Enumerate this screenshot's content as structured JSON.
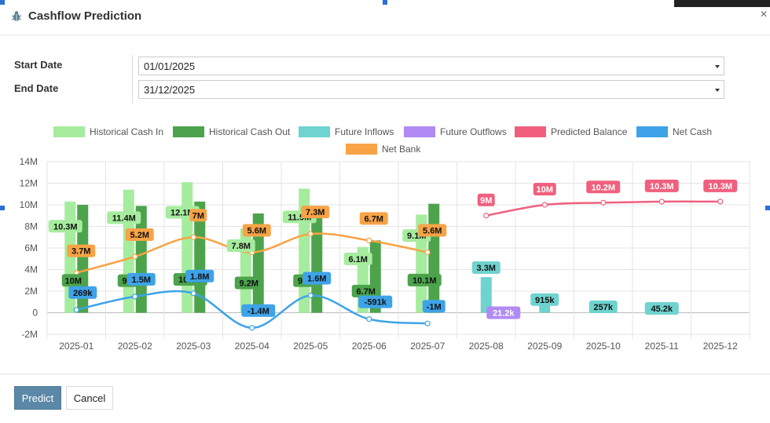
{
  "dialog": {
    "title": "Cashflow Prediction",
    "close_label": "×"
  },
  "form": {
    "start_label": "Start Date",
    "start_value": "01/01/2025",
    "end_label": "End Date",
    "end_value": "31/12/2025"
  },
  "buttons": {
    "predict": "Predict",
    "cancel": "Cancel"
  },
  "chart_data": {
    "type": "bar",
    "categories": [
      "2025-01",
      "2025-02",
      "2025-03",
      "2025-04",
      "2025-05",
      "2025-06",
      "2025-07",
      "2025-08",
      "2025-09",
      "2025-10",
      "2025-11",
      "2025-12"
    ],
    "y_ticks": [
      "14M",
      "12M",
      "10M",
      "8M",
      "6M",
      "4M",
      "2M",
      "0",
      "-2M"
    ],
    "ylim": [
      -2,
      14
    ],
    "grid": true,
    "legend_position": "top",
    "series": [
      {
        "name": "Historical Cash In",
        "kind": "bar",
        "color": "#a6ec9e",
        "values": [
          10.3,
          11.4,
          12.1,
          7.8,
          11.5,
          6.1,
          9.1,
          null,
          null,
          null,
          null,
          null
        ],
        "labels": [
          "10.3M",
          "11.4M",
          "12.1M",
          "7.8M",
          "11.5M",
          "6.1M",
          "9.1M",
          null,
          null,
          null,
          null,
          null
        ]
      },
      {
        "name": "Historical Cash Out",
        "kind": "bar",
        "color": "#4ca34c",
        "values": [
          10,
          9.9,
          10.3,
          9.2,
          9.9,
          6.7,
          10.1,
          null,
          null,
          null,
          null,
          null
        ],
        "labels": [
          "10M",
          "9.9M",
          "10.3M",
          "9.2M",
          "9.9M",
          "6.7M",
          "10.1M",
          null,
          null,
          null,
          null,
          null
        ]
      },
      {
        "name": "Future Inflows",
        "kind": "bar",
        "color": "#6fd3cf",
        "values": [
          null,
          null,
          null,
          null,
          null,
          null,
          null,
          3.3,
          0.915,
          0.257,
          0.0452,
          null
        ],
        "labels": [
          null,
          null,
          null,
          null,
          null,
          null,
          null,
          "3.3M",
          "915k",
          "257k",
          "45.2k",
          null
        ]
      },
      {
        "name": "Future Outflows",
        "kind": "bar",
        "color": "#b18af5",
        "values": [
          null,
          null,
          null,
          null,
          null,
          null,
          null,
          0.0212,
          null,
          null,
          null,
          null
        ],
        "labels": [
          null,
          null,
          null,
          null,
          null,
          null,
          null,
          "21.2k",
          null,
          null,
          null,
          null
        ]
      },
      {
        "name": "Predicted Balance",
        "kind": "line",
        "color": "#f0607e",
        "values": [
          null,
          null,
          null,
          null,
          null,
          null,
          null,
          9,
          10,
          10.2,
          10.3,
          10.3
        ],
        "labels": [
          null,
          null,
          null,
          null,
          null,
          null,
          null,
          "9M",
          "10M",
          "10.2M",
          "10.3M",
          "10.3M"
        ]
      },
      {
        "name": "Net Cash",
        "kind": "line",
        "color": "#3ea3e8",
        "values": [
          0.269,
          1.5,
          1.8,
          -1.4,
          1.6,
          -0.591,
          -1,
          null,
          null,
          null,
          null,
          null
        ],
        "labels": [
          "269k",
          "1.5M",
          "1.8M",
          "-1.4M",
          "1.6M",
          "-591k",
          "-1M",
          null,
          null,
          null,
          null,
          null
        ]
      },
      {
        "name": "Net Bank",
        "kind": "line",
        "color": "#f7a346",
        "values": [
          3.7,
          5.2,
          7,
          5.6,
          7.3,
          6.7,
          5.6,
          null,
          null,
          null,
          null,
          null
        ],
        "labels": [
          "3.7M",
          "5.2M",
          "7M",
          "5.6M",
          "7.3M",
          "6.7M",
          "5.6M",
          null,
          null,
          null,
          null,
          null
        ]
      }
    ]
  }
}
